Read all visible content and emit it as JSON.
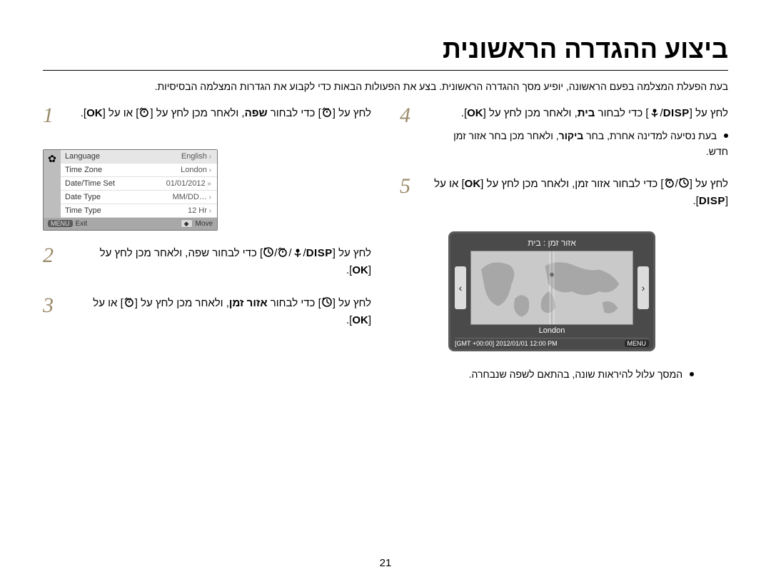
{
  "title": "ביצוע ההגדרה הראשונית",
  "intro": "בעת הפעלת המצלמה בפעם הראשונה, יופיע מסך ההגדרה הראשונית. בצע את הפעולות הבאות כדי לקבוע את הגדרות המצלמה הבסיסיות.",
  "steps_right": [
    {
      "num": "1",
      "body_parts": [
        "לחץ על [",
        "t",
        "] כדי לבחור ",
        "שפה",
        ", ולאחר מכן לחץ על [",
        "t",
        "] או על [",
        "OK",
        "]."
      ],
      "bold_idx": [
        3
      ],
      "ok_idx": [
        7
      ]
    },
    {
      "num": "2",
      "body_parts": [
        "לחץ על [",
        "DISP",
        "/",
        "c",
        "/",
        "t",
        "/",
        "F",
        "] כדי לבחור שפה, ולאחר מכן לחץ על [",
        "OK",
        "]."
      ],
      "disp_idx": [
        1
      ],
      "ok_idx": [
        9
      ]
    },
    {
      "num": "3",
      "body_parts": [
        "לחץ על [",
        "F",
        "] כדי לבחור ",
        "אזור זמן",
        ", ולאחר מכן לחץ על [",
        "t",
        "] או על [",
        "OK",
        "]."
      ],
      "bold_idx": [
        3
      ],
      "ok_idx": [
        7
      ]
    }
  ],
  "steps_left": [
    {
      "num": "4",
      "body_parts": [
        "לחץ על [",
        "DISP",
        "/",
        "c",
        "] כדי לבחור ",
        "בית",
        ", ולאחר מכן לחץ על [",
        "OK",
        "]."
      ],
      "disp_idx": [
        1
      ],
      "bold_idx": [
        5
      ],
      "ok_idx": [
        7
      ],
      "after": "בעת נסיעה למדינה אחרת, בחר ביקור, ולאחר מכן בחר אזור זמן חדש."
    },
    {
      "num": "5",
      "body_parts": [
        "לחץ על [",
        "F",
        "/",
        "t",
        "] כדי לבחור אזור זמן, ולאחר מכן לחץ על [",
        "OK",
        "] או על [",
        "DISP",
        "]."
      ],
      "ok_idx": [
        5
      ],
      "disp_idx": [
        7
      ]
    }
  ],
  "menu": {
    "rows": [
      {
        "label": "Language",
        "value": "English"
      },
      {
        "label": "Time Zone",
        "value": "London"
      },
      {
        "label": "Date/Time Set",
        "value": "01/01/2012",
        "dbl": true
      },
      {
        "label": "Date Type",
        "value": "MM/DD…"
      },
      {
        "label": "Time Type",
        "value": "12 Hr"
      }
    ],
    "footer_exit_badge": "MENU",
    "footer_exit": "Exit",
    "footer_move_badge": "◆",
    "footer_move": "Move",
    "gear": "✿"
  },
  "world": {
    "label": "אזור זמן : בית",
    "city": "London",
    "status_left": "[GMT +00:00]  2012/01/01  12:00 PM",
    "status_right": "MENU"
  },
  "map_note": "המסך עלול להיראות שונה, בהתאם לשפה שנבחרה.",
  "page_num": "21",
  "icons": {
    "timer": "t",
    "macro": "c",
    "flash": "F"
  }
}
